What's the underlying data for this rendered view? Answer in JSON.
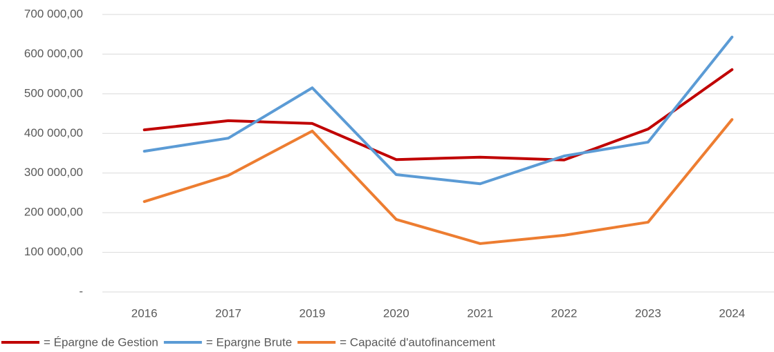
{
  "chart_data": {
    "type": "line",
    "categories": [
      "2016",
      "2017",
      "2019",
      "2020",
      "2021",
      "2022",
      "2023",
      "2024"
    ],
    "series": [
      {
        "name": "= Épargne de Gestion",
        "color": "#c00000",
        "values": [
          409000,
          432000,
          425000,
          334000,
          340000,
          333000,
          411000,
          561000
        ]
      },
      {
        "name": "= Epargne Brute",
        "color": "#5b9bd5",
        "values": [
          355000,
          388000,
          515000,
          296000,
          273000,
          343000,
          378000,
          643000
        ]
      },
      {
        "name": "= Capacité d'autofinancement",
        "color": "#ed7d31",
        "values": [
          228000,
          294000,
          406000,
          183000,
          122000,
          143000,
          176000,
          435000
        ]
      }
    ],
    "ylim": [
      0,
      700000
    ],
    "yticks": [
      {
        "value": 0,
        "label": "-"
      },
      {
        "value": 100000,
        "label": "100 000,00"
      },
      {
        "value": 200000,
        "label": "200 000,00"
      },
      {
        "value": 300000,
        "label": "300 000,00"
      },
      {
        "value": 400000,
        "label": "400 000,00"
      },
      {
        "value": 500000,
        "label": "500 000,00"
      },
      {
        "value": 600000,
        "label": "600 000,00"
      },
      {
        "value": 700000,
        "label": "700 000,00"
      }
    ],
    "grid": true,
    "legend": "bottom"
  }
}
